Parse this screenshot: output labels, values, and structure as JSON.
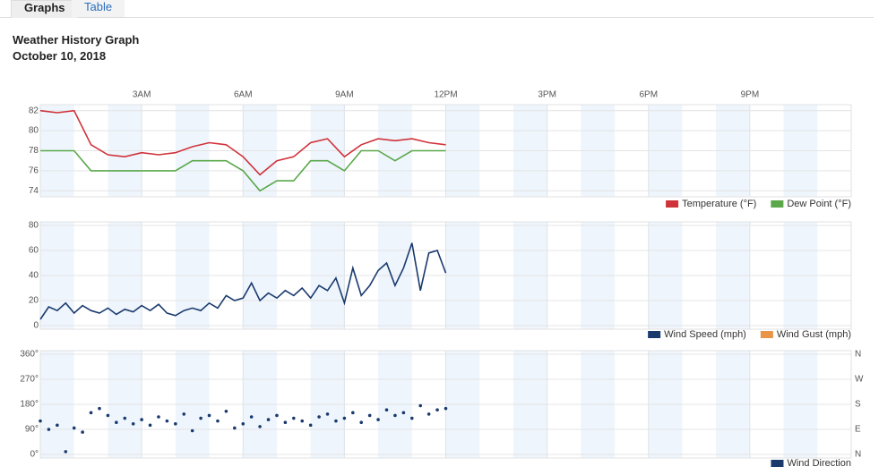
{
  "tabs": [
    "Graphs",
    "Table"
  ],
  "header": {
    "title": "Weather History Graph",
    "date": "October 10, 2018"
  },
  "chart_data": [
    {
      "type": "line",
      "x": [
        0,
        0.5,
        1,
        1.5,
        2,
        2.5,
        3,
        3.5,
        4,
        4.5,
        5,
        5.5,
        6,
        6.5,
        7,
        7.5,
        8,
        8.5,
        9,
        9.5,
        10,
        10.5,
        11,
        11.5,
        12
      ],
      "series": [
        {
          "name": "Temperature (°F)",
          "color": "#d0323a",
          "values": [
            82,
            81.8,
            82,
            78.6,
            77.6,
            77.4,
            77.8,
            77.6,
            77.8,
            78.4,
            78.8,
            78.6,
            77.4,
            75.6,
            77,
            77.4,
            78.8,
            79.2,
            77.4,
            78.6,
            79.2,
            79,
            79.2,
            78.8,
            78.6
          ]
        },
        {
          "name": "Dew Point (°F)",
          "color": "#5aa84a",
          "values": [
            78,
            78,
            78,
            76,
            76,
            76,
            76,
            76,
            76,
            77,
            77,
            77,
            76,
            74,
            75,
            75,
            77,
            77,
            76,
            78,
            78,
            77,
            78,
            78,
            78
          ]
        }
      ],
      "xlim": [
        0,
        24
      ],
      "xticks": [
        {
          "value": 3,
          "label": "3AM"
        },
        {
          "value": 6,
          "label": "6AM"
        },
        {
          "value": 9,
          "label": "9AM"
        },
        {
          "value": 12,
          "label": "12PM"
        },
        {
          "value": 15,
          "label": "3PM"
        },
        {
          "value": 18,
          "label": "6PM"
        },
        {
          "value": 21,
          "label": "9PM"
        }
      ],
      "ylim": [
        73.4,
        82.6
      ],
      "yticks": [
        74,
        76,
        78,
        80,
        82
      ],
      "grid": true
    },
    {
      "type": "line",
      "x": [
        0,
        0.25,
        0.5,
        0.75,
        1,
        1.25,
        1.5,
        1.75,
        2,
        2.25,
        2.5,
        2.75,
        3,
        3.25,
        3.5,
        3.75,
        4,
        4.25,
        4.5,
        4.75,
        5,
        5.25,
        5.5,
        5.75,
        6,
        6.25,
        6.5,
        6.75,
        7,
        7.25,
        7.5,
        7.75,
        8,
        8.25,
        8.5,
        8.75,
        9,
        9.25,
        9.5,
        9.75,
        10,
        10.25,
        10.5,
        10.75,
        11,
        11.25,
        11.5,
        11.75,
        12
      ],
      "series": [
        {
          "name": "Wind Speed (mph)",
          "color": "#1a3a6e",
          "values": [
            5,
            15,
            12,
            18,
            10,
            16,
            12,
            10,
            14,
            9,
            13,
            11,
            16,
            12,
            17,
            10,
            8,
            12,
            14,
            12,
            18,
            14,
            24,
            20,
            22,
            34,
            20,
            26,
            22,
            28,
            24,
            30,
            22,
            32,
            28,
            38,
            18,
            46,
            24,
            32,
            44,
            50,
            32,
            46,
            66,
            28,
            58,
            60,
            42
          ]
        },
        {
          "name": "Wind Gust (mph)",
          "color": "#e8954a",
          "values": [
            null,
            null,
            null,
            null,
            null,
            null,
            null,
            null,
            null,
            null,
            null,
            null,
            null,
            null,
            null,
            null,
            null,
            null,
            null,
            null,
            null,
            null,
            null,
            null,
            null,
            null,
            null,
            null,
            null,
            null,
            null,
            null,
            null,
            null,
            null,
            null,
            null,
            null,
            null,
            null,
            null,
            null,
            null,
            null,
            null,
            null,
            null,
            null,
            null
          ]
        }
      ],
      "xlim": [
        0,
        24
      ],
      "ylim": [
        -2.9,
        82.9
      ],
      "yticks": [
        0,
        20,
        40,
        60,
        80
      ],
      "grid": true
    },
    {
      "type": "scatter",
      "x": [
        0,
        0.25,
        0.5,
        0.75,
        1,
        1.25,
        1.5,
        1.75,
        2,
        2.25,
        2.5,
        2.75,
        3,
        3.25,
        3.5,
        3.75,
        4,
        4.25,
        4.5,
        4.75,
        5,
        5.25,
        5.5,
        5.75,
        6,
        6.25,
        6.5,
        6.75,
        7,
        7.25,
        7.5,
        7.75,
        8,
        8.25,
        8.5,
        8.75,
        9,
        9.25,
        9.5,
        9.75,
        10,
        10.25,
        10.5,
        10.75,
        11,
        11.25,
        11.5,
        11.75,
        12
      ],
      "series": [
        {
          "name": "Wind Direction",
          "color": "#1a3a6e",
          "values": [
            120,
            90,
            105,
            10,
            95,
            80,
            150,
            165,
            140,
            115,
            130,
            110,
            125,
            105,
            135,
            120,
            110,
            145,
            85,
            130,
            140,
            120,
            155,
            95,
            110,
            135,
            100,
            125,
            140,
            115,
            130,
            120,
            105,
            135,
            145,
            120,
            130,
            150,
            115,
            140,
            125,
            160,
            140,
            150,
            130,
            175,
            145,
            160,
            165
          ]
        }
      ],
      "xlim": [
        0,
        24
      ],
      "ylim": [
        -12.9,
        372.9
      ],
      "yticks": [
        {
          "value": 0,
          "label": "0°"
        },
        {
          "value": 90,
          "label": "90°"
        },
        {
          "value": 180,
          "label": "180°"
        },
        {
          "value": 270,
          "label": "270°"
        },
        {
          "value": 360,
          "label": "360°"
        }
      ],
      "y2lim": [
        -12.9,
        372.9
      ],
      "y2ticks": [
        {
          "value": 0,
          "label": "N"
        },
        {
          "value": 90,
          "label": "E"
        },
        {
          "value": 180,
          "label": "S"
        },
        {
          "value": 270,
          "label": "W"
        },
        {
          "value": 360,
          "label": "N"
        }
      ],
      "grid": true
    }
  ]
}
